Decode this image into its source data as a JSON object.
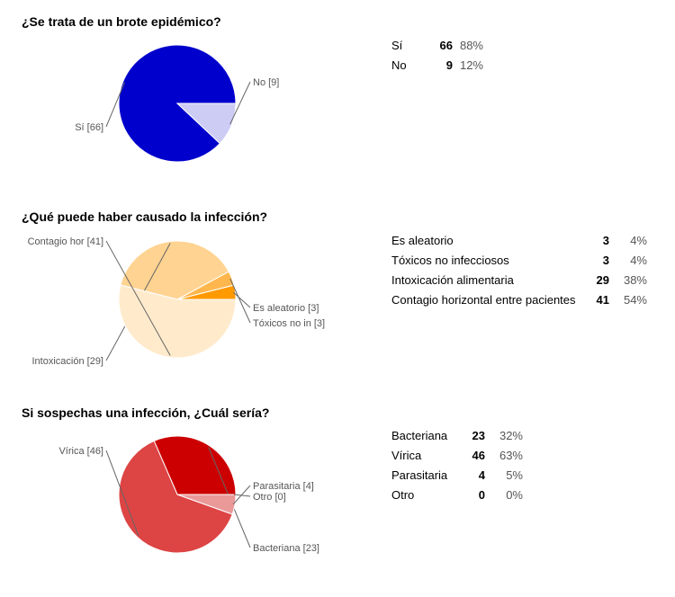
{
  "chart_data": [
    {
      "type": "pie",
      "title": "¿Se trata de un brote epidémico?",
      "slices": [
        {
          "name": "Sí",
          "pie_label": "Sí [66]",
          "value": 66,
          "percent": "88%",
          "color": "#0000cc"
        },
        {
          "name": "No",
          "pie_label": "No [9]",
          "value": 9,
          "percent": "12%",
          "color": "#ccccf5"
        }
      ]
    },
    {
      "type": "pie",
      "title": "¿Qué puede haber causado la infección?",
      "slices": [
        {
          "name": "Es aleatorio",
          "pie_label": "Es aleatorio [3]",
          "value": 3,
          "percent": "4%",
          "color": "#ff9900"
        },
        {
          "name": "Tóxicos no infecciosos",
          "pie_label": "Tóxicos no in [3]",
          "value": 3,
          "percent": "4%",
          "color": "#ffb74d"
        },
        {
          "name": "Intoxicación alimentaria",
          "pie_label": "Intoxicación [29]",
          "value": 29,
          "percent": "38%",
          "color": "#ffd391"
        },
        {
          "name": "Contagio horizontal entre pacientes",
          "pie_label": "Contagio hor [41]",
          "value": 41,
          "percent": "54%",
          "color": "#ffebcc"
        }
      ]
    },
    {
      "type": "pie",
      "title": "Si sospechas una infección, ¿Cuál sería?",
      "slices": [
        {
          "name": "Bacteriana",
          "pie_label": "Bacteriana [23]",
          "value": 23,
          "percent": "32%",
          "color": "#cc0000"
        },
        {
          "name": "Vírica",
          "pie_label": "Vírica [46]",
          "value": 46,
          "percent": "63%",
          "color": "#dd4444"
        },
        {
          "name": "Parasitaria",
          "pie_label": "Parasitaria [4]",
          "value": 4,
          "percent": "5%",
          "color": "#ea9999"
        },
        {
          "name": "Otro",
          "pie_label": "Otro [0]",
          "value": 0,
          "percent": "0%",
          "color": "#f4cccc"
        }
      ]
    }
  ]
}
